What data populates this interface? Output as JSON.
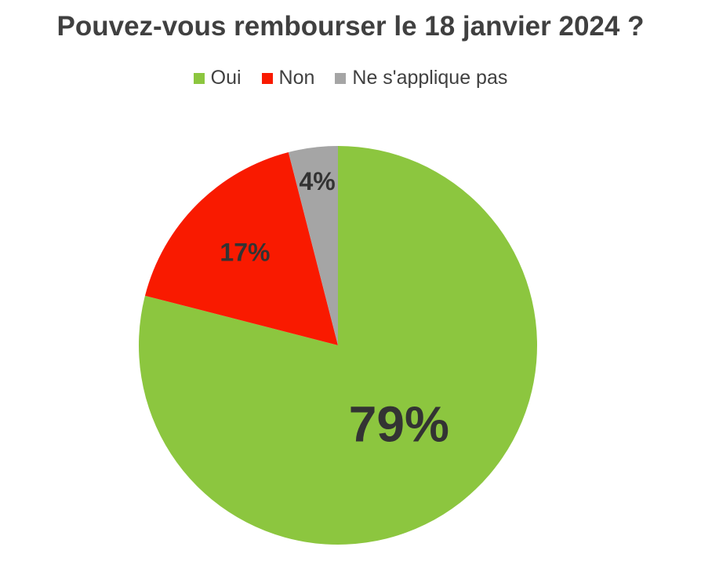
{
  "chart_data": {
    "type": "pie",
    "title": "Pouvez-vous rembourser le 18 janvier 2024 ?",
    "legend_placement": "top",
    "slices": [
      {
        "name": "Oui",
        "value": 79,
        "label": "79%",
        "color": "#8CC63F"
      },
      {
        "name": "Non",
        "value": 17,
        "label": "17%",
        "color": "#F91A00"
      },
      {
        "name": "Ne s'applique pas",
        "value": 4,
        "label": "4%",
        "color": "#A5A5A5"
      }
    ]
  }
}
